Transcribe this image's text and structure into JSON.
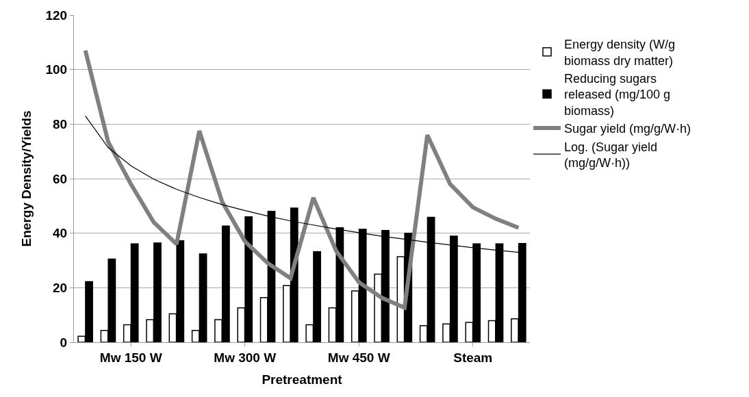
{
  "chart_data": {
    "type": "bar",
    "xlabel": "Pretreatment",
    "ylabel": "Energy Density/Yields",
    "categories": [
      null,
      null,
      "Mw 150 W",
      null,
      null,
      null,
      null,
      "Mw 300 W",
      null,
      null,
      null,
      null,
      "Mw 450 W",
      null,
      null,
      null,
      null,
      "Steam",
      null,
      null
    ],
    "series": [
      {
        "name": "Energy density (W/g biomass dry matter)",
        "color": "#ffffff",
        "values": [
          2.2,
          4.3,
          6.4,
          8.3,
          10.4,
          4.3,
          8.3,
          12.6,
          16.4,
          20.8,
          6.4,
          12.6,
          18.8,
          25,
          31.4,
          6.1,
          6.7,
          7.3,
          7.9,
          8.6
        ]
      },
      {
        "name": "Reducing sugars released (mg/100 g biomass)",
        "color": "#000000",
        "values": [
          22.2,
          30.5,
          36.1,
          36.4,
          37.2,
          32.4,
          42.6,
          46,
          48,
          49.2,
          33.2,
          42,
          41.4,
          41,
          40,
          45.8,
          38.9,
          36.1,
          36.1,
          36.2
        ]
      },
      {
        "name": "Sugar yield (mg/g/W·h)",
        "type": "line",
        "color": "#808080",
        "values": [
          107,
          73.5,
          58,
          44,
          36,
          77.5,
          51.5,
          37,
          29,
          23.5,
          53,
          33.5,
          22,
          16.3,
          12.7,
          76,
          58,
          49.5,
          45.3,
          42
        ]
      },
      {
        "name": "Log. (Sugar yield (mg/g/W·h))",
        "type": "line",
        "color": "#000000",
        "values": [
          83,
          71.4,
          64.7,
          59.8,
          56.1,
          53.1,
          50.5,
          48.3,
          46.3,
          44.5,
          43.0,
          41.5,
          40.2,
          38.9,
          37.8,
          36.7,
          35.7,
          34.7,
          33.8,
          33
        ]
      }
    ],
    "ylim": [
      0,
      120
    ],
    "yticks": [
      0,
      20,
      40,
      60,
      80,
      100,
      120
    ],
    "grid": "y",
    "legend": "right"
  }
}
